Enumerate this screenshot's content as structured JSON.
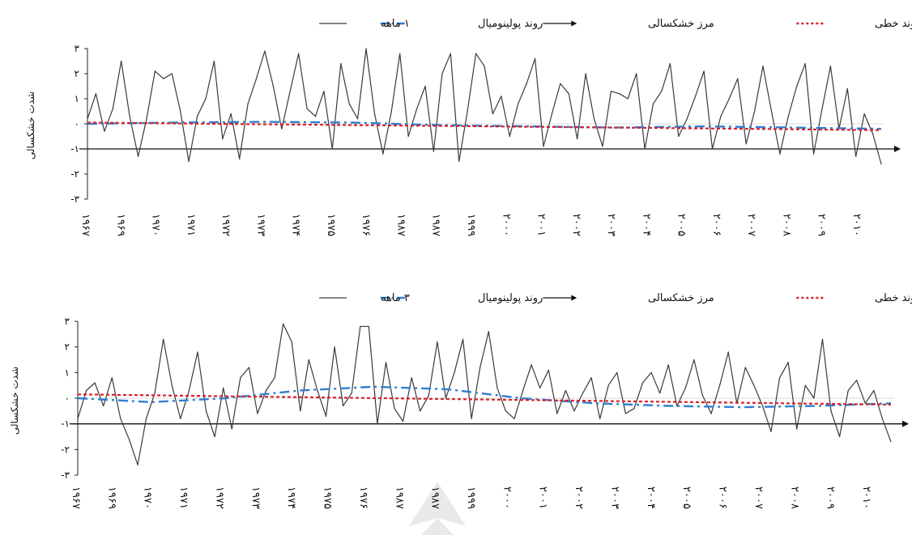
{
  "colors": {
    "series_1m": "#3a3a3a",
    "drought_boundary": "#111111",
    "poly_trend": "#2f7fd1",
    "linear_trend": "#d8222b"
  },
  "chart_data": [
    {
      "type": "line",
      "ylabel": "شدت خشکسالی",
      "yticks": [
        "۳",
        "۲",
        "۱",
        "۰",
        "-۱",
        "-۲",
        "-۳"
      ],
      "ylim": [
        -3,
        3
      ],
      "xticks": [
        "۱۹۶۷",
        "۱۹۶۹",
        "۱۹۷۰",
        "۱۹۷۱",
        "۱۹۷۲",
        "۱۹۷۳",
        "۱۹۷۴",
        "۱۹۷۵",
        "۱۹۷۶",
        "۱۹۸۷",
        "۱۹۸۷",
        "۱۹۹۹",
        "۲۰۰۰",
        "۲۰۰۱",
        "۲۰۰۲",
        "۲۰۰۳",
        "۲۰۰۴",
        "۲۰۰۵",
        "۲۰۰۶",
        "۲۰۰۷",
        "۲۰۰۸",
        "۲۰۰۹",
        "۲۰۱۰"
      ],
      "legend": [
        {
          "label": "روند خطی",
          "style": "dotted-red"
        },
        {
          "label": "مرز خشکسالی",
          "style": "arrow-black"
        },
        {
          "label": "روند پولینومیال",
          "style": "dashdot-blue"
        },
        {
          "label": "۱ ماهه",
          "style": "solid-gray"
        }
      ],
      "drought_boundary": -1,
      "linear_trend": [
        0.05,
        -0.25
      ],
      "poly_trend": [
        0.0,
        0.05,
        0.08,
        0.05,
        -0.05,
        -0.1,
        -0.15,
        -0.1,
        -0.15,
        -0.2
      ],
      "series": [
        {
          "name": "۱ ماهه",
          "values": [
            0.2,
            1.2,
            -0.3,
            0.6,
            2.5,
            0.3,
            -1.3,
            0.2,
            2.1,
            1.8,
            2.0,
            0.5,
            -1.5,
            0.3,
            1.0,
            2.5,
            -0.6,
            0.4,
            -1.4,
            0.8,
            1.8,
            2.9,
            1.5,
            -0.2,
            1.3,
            2.8,
            0.6,
            0.3,
            1.3,
            -1.0,
            2.4,
            0.8,
            0.2,
            3.0,
            0.4,
            -1.2,
            0.5,
            2.8,
            -0.5,
            0.6,
            1.5,
            -1.1,
            2.0,
            2.8,
            -1.5,
            0.5,
            2.8,
            2.3,
            0.4,
            1.1,
            -0.5,
            0.8,
            1.6,
            2.6,
            -0.9,
            0.4,
            1.6,
            1.2,
            -0.6,
            2.0,
            0.2,
            -0.9,
            1.3,
            1.2,
            1.0,
            2.0,
            -1.0,
            0.8,
            1.3,
            2.4,
            -0.5,
            0.2,
            1.1,
            2.1,
            -1.0,
            0.3,
            1.0,
            1.8,
            -0.8,
            0.5,
            2.3,
            0.5,
            -1.2,
            0.3,
            1.5,
            2.4,
            -1.2,
            0.6,
            2.3,
            -0.2,
            1.4,
            -1.3,
            0.4,
            -0.4,
            -1.6
          ]
        }
      ]
    },
    {
      "type": "line",
      "ylabel": "شدت خشکسالی",
      "yticks": [
        "۳",
        "۲",
        "۱",
        "۰",
        "-۱",
        "-۲",
        "-۳"
      ],
      "ylim": [
        -3,
        3
      ],
      "xticks": [
        "۱۹۶۷",
        "۱۹۶۹",
        "۱۹۷۰",
        "۱۹۷۱",
        "۱۹۷۲",
        "۱۹۷۳",
        "۱۹۷۴",
        "۱۹۷۵",
        "۱۹۷۶",
        "۱۹۸۷",
        "۱۹۸۷",
        "۱۹۹۹",
        "۲۰۰۰",
        "۲۰۰۱",
        "۲۰۰۲",
        "۲۰۰۳",
        "۲۰۰۴",
        "۲۰۰۵",
        "۲۰۰۶",
        "۲۰۰۷",
        "۲۰۰۸",
        "۲۰۰۹",
        "۲۰۱۰"
      ],
      "legend": [
        {
          "label": "روند خطی",
          "style": "dotted-red"
        },
        {
          "label": "مرز خشکسالی",
          "style": "arrow-black"
        },
        {
          "label": "روند پولینومیال",
          "style": "dashdot-blue"
        },
        {
          "label": "۳ ماهه",
          "style": "solid-gray"
        }
      ],
      "drought_boundary": -1,
      "linear_trend": [
        0.15,
        -0.25
      ],
      "poly_trend": [
        0.0,
        -0.15,
        0.0,
        0.3,
        0.45,
        0.35,
        0.0,
        -0.2,
        -0.3,
        -0.35,
        -0.3,
        -0.2
      ],
      "series": [
        {
          "name": "۳ ماهه",
          "values": [
            -0.8,
            0.3,
            0.6,
            -0.3,
            0.8,
            -0.8,
            -1.6,
            -2.6,
            -0.8,
            0.2,
            2.3,
            0.5,
            -0.8,
            0.3,
            1.8,
            -0.5,
            -1.5,
            0.4,
            -1.2,
            0.8,
            1.2,
            -0.6,
            0.3,
            0.8,
            2.9,
            2.2,
            -0.5,
            1.5,
            0.3,
            -0.7,
            2.0,
            -0.3,
            0.2,
            2.8,
            2.8,
            -1.0,
            1.4,
            -0.4,
            -0.9,
            0.8,
            -0.5,
            0.1,
            2.2,
            0.0,
            1.0,
            2.3,
            -0.8,
            1.2,
            2.6,
            0.4,
            -0.5,
            -0.8,
            0.3,
            1.3,
            0.4,
            1.1,
            -0.6,
            0.3,
            -0.5,
            0.2,
            0.8,
            -0.8,
            0.5,
            1.0,
            -0.6,
            -0.4,
            0.6,
            1.0,
            0.2,
            1.3,
            -0.3,
            0.4,
            1.5,
            0.1,
            -0.6,
            0.5,
            1.8,
            -0.2,
            1.2,
            0.5,
            -0.3,
            -1.3,
            0.8,
            1.4,
            -1.2,
            0.5,
            0.0,
            2.3,
            -0.5,
            -1.5,
            0.3,
            0.7,
            -0.2,
            0.3,
            -0.8,
            -1.7
          ]
        }
      ]
    }
  ]
}
